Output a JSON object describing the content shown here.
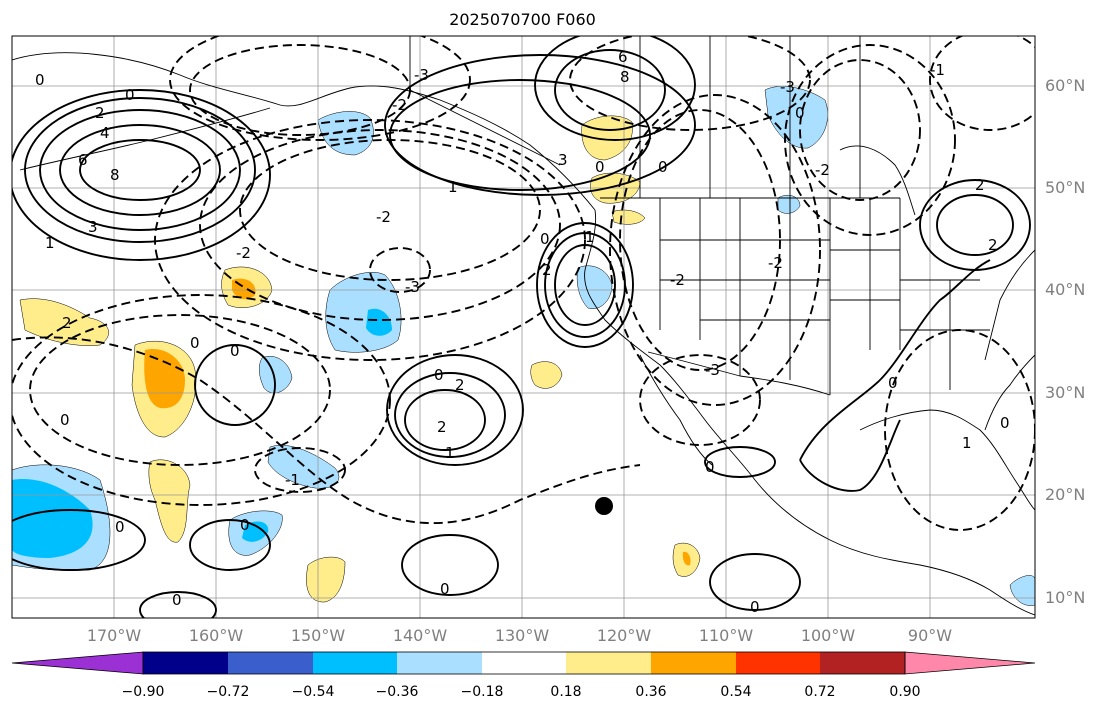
{
  "title": "2025070700 F060",
  "lat_labels": [
    "60°N",
    "50°N",
    "40°N",
    "30°N",
    "20°N",
    "10°N"
  ],
  "lon_labels": [
    "170°W",
    "160°W",
    "150°W",
    "140°W",
    "130°W",
    "120°W",
    "110°W",
    "100°W",
    "90°W"
  ],
  "colorbar": {
    "labels": [
      "−0.90",
      "−0.72",
      "−0.54",
      "−0.36",
      "−0.18",
      "0.18",
      "0.36",
      "0.54",
      "0.72",
      "0.90"
    ],
    "colors": [
      "#9b30d4",
      "#00008b",
      "#3a5fcd",
      "#00bfff",
      "#abdfff",
      "#ffffff",
      "#ffec8b",
      "#ffa500",
      "#ff3300",
      "#b22222",
      "#ff88aa"
    ]
  },
  "contour_labels": [
    "0",
    "2",
    "4",
    "6",
    "8",
    "1",
    "3",
    "-2",
    "-3",
    "-1"
  ],
  "marker": {
    "type": "point",
    "color": "#000000"
  }
}
